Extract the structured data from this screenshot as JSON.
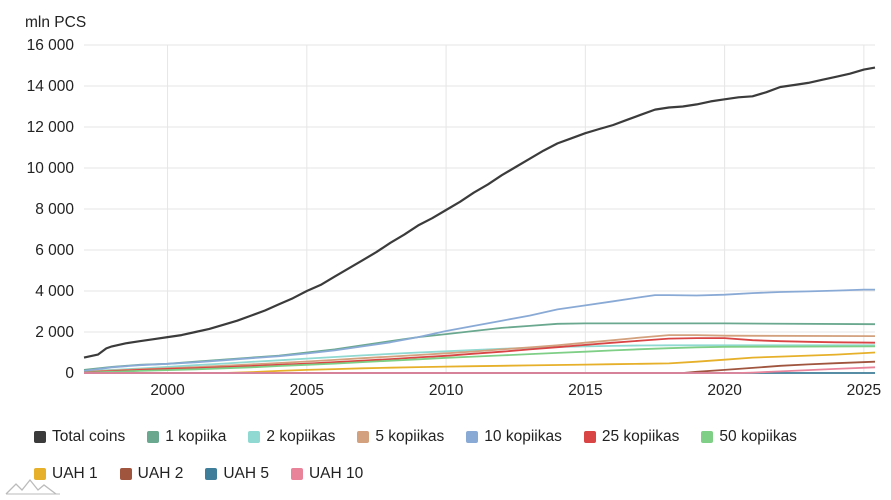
{
  "chart_data": {
    "type": "line",
    "ylabel": "mln PCS",
    "xlim": [
      1997.0,
      2025.4
    ],
    "ylim": [
      0,
      16000
    ],
    "yticks": [
      0,
      2000,
      4000,
      6000,
      8000,
      10000,
      12000,
      14000,
      16000
    ],
    "ytick_labels": [
      "0",
      "2 000",
      "4 000",
      "6 000",
      "8 000",
      "10 000",
      "12 000",
      "14 000",
      "16 000"
    ],
    "xticks": [
      2000,
      2005,
      2010,
      2015,
      2020,
      2025
    ],
    "xtick_labels": [
      "2000",
      "2005",
      "2010",
      "2015",
      "2020",
      "2025"
    ],
    "legend_position": "bottom",
    "series": [
      {
        "name": "Total coins",
        "color": "#3b3b3b",
        "x": [
          1997,
          1997.5,
          1997.8,
          1998,
          1998.5,
          1999,
          1999.5,
          2000,
          2000.5,
          2001,
          2001.5,
          2002,
          2002.5,
          2003,
          2003.5,
          2004,
          2004.5,
          2005,
          2005.5,
          2006,
          2006.5,
          2007,
          2007.5,
          2008,
          2008.5,
          2009,
          2009.5,
          2010,
          2010.5,
          2011,
          2011.5,
          2012,
          2012.5,
          2013,
          2013.5,
          2014,
          2014.5,
          2015,
          2015.5,
          2016,
          2016.5,
          2017,
          2017.5,
          2018,
          2018.5,
          2019,
          2019.5,
          2020,
          2020.5,
          2021,
          2021.5,
          2022,
          2022.5,
          2023,
          2023.5,
          2024,
          2024.5,
          2025,
          2025.4
        ],
        "y": [
          750,
          900,
          1200,
          1300,
          1450,
          1550,
          1650,
          1750,
          1850,
          2000,
          2150,
          2350,
          2550,
          2800,
          3050,
          3350,
          3650,
          4000,
          4300,
          4700,
          5100,
          5500,
          5900,
          6350,
          6750,
          7200,
          7550,
          7950,
          8350,
          8800,
          9200,
          9650,
          10050,
          10450,
          10850,
          11200,
          11450,
          11700,
          11900,
          12100,
          12350,
          12600,
          12850,
          12950,
          13000,
          13100,
          13250,
          13350,
          13450,
          13500,
          13700,
          13950,
          14050,
          14150,
          14300,
          14450,
          14600,
          14800,
          14900
        ]
      },
      {
        "name": "1 kopiika",
        "color": "#6aa88f",
        "x": [
          1997,
          1998,
          1999,
          2000,
          2001,
          2002,
          2003,
          2004,
          2005,
          2006,
          2007,
          2008,
          2009,
          2010,
          2011,
          2012,
          2013,
          2014,
          2015,
          2020,
          2025.4
        ],
        "y": [
          150,
          300,
          400,
          450,
          550,
          650,
          750,
          850,
          1000,
          1150,
          1350,
          1550,
          1750,
          1900,
          2050,
          2200,
          2300,
          2400,
          2420,
          2420,
          2380
        ]
      },
      {
        "name": "2 kopiikas",
        "color": "#8fd9d2",
        "x": [
          1997,
          1998,
          1999,
          2000,
          2001,
          2002,
          2003,
          2004,
          2005,
          2006,
          2007,
          2008,
          2009,
          2010,
          2011,
          2012,
          2013,
          2014,
          2015,
          2016,
          2017,
          2018,
          2020,
          2025.4
        ],
        "y": [
          80,
          150,
          220,
          300,
          380,
          460,
          540,
          620,
          700,
          780,
          860,
          930,
          1000,
          1060,
          1120,
          1180,
          1230,
          1270,
          1300,
          1320,
          1340,
          1350,
          1350,
          1350
        ]
      },
      {
        "name": "5 kopiikas",
        "color": "#d3a17e",
        "x": [
          1997,
          1998,
          1999,
          2000,
          2001,
          2002,
          2003,
          2004,
          2005,
          2006,
          2007,
          2008,
          2009,
          2010,
          2011,
          2012,
          2013,
          2014,
          2015,
          2016,
          2017,
          2018,
          2019,
          2020,
          2025.4
        ],
        "y": [
          60,
          120,
          180,
          230,
          290,
          350,
          420,
          490,
          560,
          640,
          720,
          800,
          880,
          960,
          1050,
          1150,
          1250,
          1350,
          1480,
          1600,
          1730,
          1850,
          1850,
          1820,
          1800
        ]
      },
      {
        "name": "10 kopiikas",
        "color": "#8aaad6",
        "x": [
          1997,
          1998,
          1999,
          2000,
          2001,
          2002,
          2003,
          2004,
          2005,
          2006,
          2007,
          2008,
          2009,
          2010,
          2011,
          2012,
          2013,
          2014,
          2015,
          2016,
          2017,
          2017.5,
          2018,
          2019,
          2020,
          2021,
          2022,
          2023,
          2024,
          2025,
          2025.4
        ],
        "y": [
          100,
          280,
          380,
          450,
          520,
          620,
          720,
          820,
          950,
          1100,
          1300,
          1500,
          1750,
          2050,
          2300,
          2550,
          2800,
          3100,
          3300,
          3500,
          3700,
          3800,
          3800,
          3780,
          3820,
          3900,
          3950,
          3980,
          4020,
          4070,
          4070
        ]
      },
      {
        "name": "25 kopiikas",
        "color": "#d94545",
        "x": [
          1997,
          1998,
          1999,
          2000,
          2001,
          2002,
          2003,
          2004,
          2005,
          2006,
          2007,
          2008,
          2009,
          2010,
          2011,
          2012,
          2013,
          2014,
          2015,
          2016,
          2017,
          2018,
          2019,
          2020,
          2021,
          2022,
          2023,
          2024,
          2025.4
        ],
        "y": [
          30,
          90,
          150,
          200,
          240,
          290,
          340,
          400,
          460,
          530,
          600,
          680,
          760,
          840,
          940,
          1040,
          1150,
          1260,
          1370,
          1480,
          1580,
          1680,
          1700,
          1700,
          1600,
          1550,
          1520,
          1500,
          1480
        ]
      },
      {
        "name": "50 kopiikas",
        "color": "#7fcf86",
        "x": [
          1997,
          1998,
          1999,
          2000,
          2001,
          2002,
          2003,
          2004,
          2005,
          2006,
          2007,
          2008,
          2009,
          2010,
          2011,
          2012,
          2013,
          2014,
          2015,
          2016,
          2017,
          2018,
          2019,
          2020,
          2025.4
        ],
        "y": [
          20,
          60,
          100,
          140,
          180,
          230,
          280,
          340,
          400,
          460,
          530,
          600,
          670,
          740,
          800,
          860,
          920,
          980,
          1040,
          1100,
          1160,
          1210,
          1250,
          1280,
          1300
        ]
      },
      {
        "name": "UAH 1",
        "color": "#e6b02a",
        "x": [
          1997,
          2002,
          2003,
          2004,
          2005,
          2006,
          2007,
          2008,
          2009,
          2010,
          2011,
          2012,
          2013,
          2014,
          2015,
          2016,
          2017,
          2018,
          2019,
          2020,
          2021,
          2022,
          2023,
          2024,
          2025.4
        ],
        "y": [
          0,
          0,
          40,
          100,
          150,
          190,
          230,
          260,
          290,
          310,
          330,
          350,
          370,
          390,
          410,
          430,
          450,
          470,
          550,
          650,
          750,
          800,
          850,
          900,
          1000
        ]
      },
      {
        "name": "UAH 2",
        "color": "#a0553f",
        "x": [
          1997,
          2018.5,
          2019,
          2020,
          2021,
          2022,
          2023,
          2024,
          2025.4
        ],
        "y": [
          0,
          0,
          60,
          150,
          250,
          350,
          420,
          480,
          550
        ]
      },
      {
        "name": "UAH 5",
        "color": "#3f7e9a",
        "x": [
          1997,
          2025.4
        ],
        "y": [
          0,
          0
        ]
      },
      {
        "name": "UAH 10",
        "color": "#e8839a",
        "x": [
          1997,
          2020.5,
          2021,
          2022,
          2023,
          2024,
          2025.4
        ],
        "y": [
          0,
          0,
          20,
          80,
          140,
          200,
          280
        ]
      }
    ]
  }
}
